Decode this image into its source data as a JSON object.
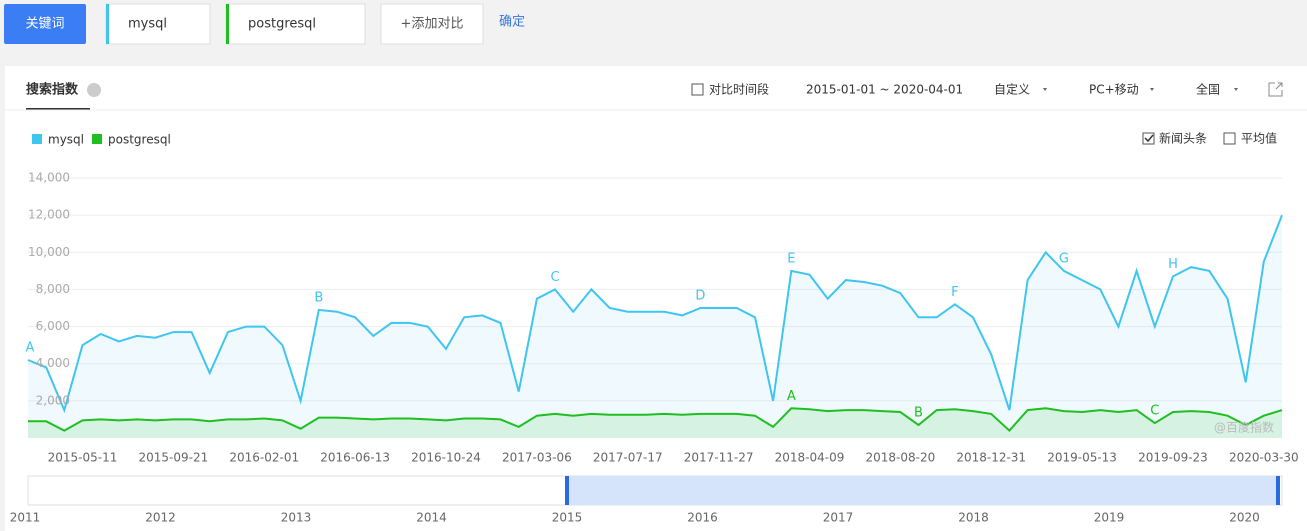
{
  "toolbar": {
    "keyword_button": "关键词",
    "keywords": [
      {
        "text": "mysql",
        "color": "#3ec5f0"
      },
      {
        "text": "postgresql",
        "color": "#1fbf1f"
      }
    ],
    "add": "+添加对比",
    "confirm": "确定"
  },
  "panel": {
    "tab": "搜索指数",
    "compare_period": "对比时间段",
    "date_range": "2015-01-01 ~ 2020-04-01",
    "custom": "自定义",
    "device": "PC+移动",
    "region": "全国",
    "news": "新闻头条",
    "news_checked": true,
    "average": "平均值",
    "average_checked": false,
    "watermark": "@百度指数",
    "navigator_labels": [
      "2011",
      "2012",
      "2013",
      "2014",
      "2015",
      "2016",
      "2017",
      "2018",
      "2019",
      "2020"
    ]
  },
  "chart_data": {
    "type": "line",
    "categories": [
      null,
      null,
      null,
      "2015-05-11",
      null,
      null,
      null,
      null,
      "2015-09-21",
      null,
      null,
      null,
      null,
      "2016-02-01",
      null,
      null,
      null,
      null,
      "2016-06-13",
      null,
      null,
      null,
      null,
      "2016-10-24",
      null,
      null,
      null,
      null,
      "2017-03-06",
      null,
      null,
      null,
      null,
      "2017-07-17",
      null,
      null,
      null,
      null,
      "2017-11-27",
      null,
      null,
      null,
      null,
      "2018-04-09",
      null,
      null,
      null,
      null,
      "2018-08-20",
      null,
      null,
      null,
      null,
      "2018-12-31",
      null,
      null,
      null,
      null,
      "2019-05-13",
      null,
      null,
      null,
      null,
      "2019-09-23",
      null,
      null,
      null,
      null,
      "2020-03-30",
      null
    ],
    "series": [
      {
        "name": "mysql",
        "color": "#3ec5f0",
        "values": [
          4200,
          3800,
          1500,
          5000,
          5600,
          5200,
          5500,
          5400,
          5700,
          5700,
          3500,
          5700,
          6000,
          6000,
          5000,
          2000,
          6900,
          6800,
          6500,
          5500,
          6200,
          6200,
          6000,
          4800,
          6500,
          6600,
          6200,
          2500,
          7500,
          8000,
          6800,
          8000,
          7000,
          6800,
          6800,
          6800,
          6600,
          7000,
          7000,
          7000,
          6500,
          2000,
          9000,
          8800,
          7500,
          8500,
          8400,
          8200,
          7800,
          6500,
          6500,
          7200,
          6500,
          4500,
          1500,
          8500,
          10000,
          9000,
          8500,
          8000,
          6000,
          9000,
          6000,
          8700,
          9200,
          9000,
          7500,
          3000,
          9500,
          12000
        ]
      },
      {
        "name": "postgresql",
        "color": "#1fbf1f",
        "values": [
          900,
          900,
          400,
          950,
          1000,
          950,
          1000,
          950,
          1000,
          1000,
          900,
          1000,
          1000,
          1050,
          950,
          500,
          1100,
          1100,
          1050,
          1000,
          1050,
          1050,
          1000,
          950,
          1050,
          1050,
          1000,
          600,
          1200,
          1300,
          1200,
          1300,
          1250,
          1250,
          1250,
          1300,
          1250,
          1300,
          1300,
          1300,
          1200,
          600,
          1600,
          1550,
          1450,
          1500,
          1500,
          1450,
          1400,
          700,
          1500,
          1550,
          1450,
          1300,
          400,
          1500,
          1600,
          1450,
          1400,
          1500,
          1400,
          1500,
          800,
          1400,
          1450,
          1400,
          1200,
          700,
          1200,
          1500
        ]
      }
    ],
    "annotations": [
      {
        "label": "A",
        "series": 0,
        "index": 0
      },
      {
        "label": "B",
        "series": 0,
        "index": 16
      },
      {
        "label": "C",
        "series": 0,
        "index": 29
      },
      {
        "label": "D",
        "series": 0,
        "index": 37
      },
      {
        "label": "E",
        "series": 0,
        "index": 42
      },
      {
        "label": "F",
        "series": 0,
        "index": 51
      },
      {
        "label": "G",
        "series": 0,
        "index": 57
      },
      {
        "label": "H",
        "series": 0,
        "index": 63
      },
      {
        "label": "A",
        "series": 1,
        "index": 42
      },
      {
        "label": "B",
        "series": 1,
        "index": 49
      },
      {
        "label": "C",
        "series": 1,
        "index": 62
      }
    ],
    "ylim": [
      0,
      14000
    ],
    "yticks": [
      {
        "value": 2000,
        "label": "2,000"
      },
      {
        "value": 4000,
        "label": "4,000"
      },
      {
        "value": 6000,
        "label": "6,000"
      },
      {
        "value": 8000,
        "label": "8,000"
      },
      {
        "value": 10000,
        "label": "10,000"
      },
      {
        "value": 12000,
        "label": "12,000"
      },
      {
        "value": 14000,
        "label": "14,000"
      }
    ],
    "grid": true
  }
}
